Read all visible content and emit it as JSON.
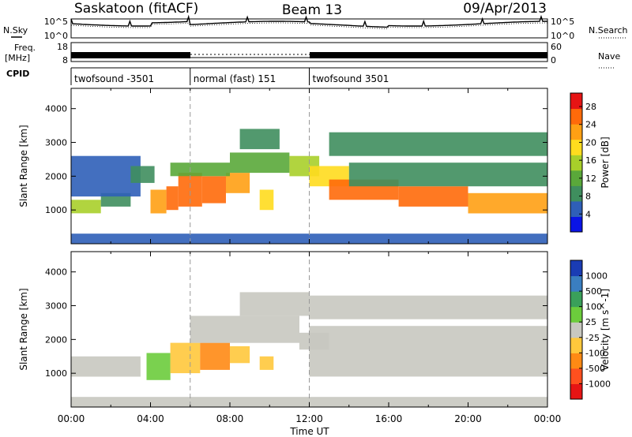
{
  "header": {
    "station": "Saskatoon (fitACF)",
    "beam": "Beam 13",
    "date": "09/Apr/2013"
  },
  "strip_labels": {
    "n_sky": "N.Sky",
    "n_search": "N.Search",
    "freq_line1": "Freq.",
    "freq_line2": "[MHz]",
    "nave": "Nave",
    "cpid": "CPID",
    "noise_tick_hi": "10^5",
    "noise_tick_lo": "10^0",
    "freq_tick_hi": "18",
    "freq_tick_lo": "8",
    "nave_tick_hi": "60",
    "nave_tick_lo": "0"
  },
  "cpid_segments": [
    {
      "label": "twofsound -3501",
      "start": "00:00",
      "end": "06:00"
    },
    {
      "label": "normal (fast) 151",
      "start": "06:00",
      "end": "12:00"
    },
    {
      "label": "twofsound 3501",
      "start": "12:00",
      "end": "24:00"
    }
  ],
  "x_axis": {
    "title": "Time UT",
    "ticks": [
      "00:00",
      "04:00",
      "08:00",
      "12:00",
      "16:00",
      "20:00",
      "00:00"
    ],
    "range_hours": [
      0,
      24
    ]
  },
  "colors": {
    "power": [
      "#0a14e6",
      "#2f5fb8",
      "#3f8e5e",
      "#5aa83a",
      "#a8cf2a",
      "#ffdc1e",
      "#ffa014",
      "#ff6a0a",
      "#e61414"
    ],
    "velocity": [
      "#1a3cb4",
      "#3a7ec0",
      "#3aa05a",
      "#6ccc3c",
      "#c8c8c0",
      "#ffc83c",
      "#ff8a14",
      "#ff501e",
      "#e61414"
    ]
  },
  "chart_data": [
    {
      "type": "heatmap",
      "panel": "power",
      "ylabel": "Slant Range [km]",
      "ylim": [
        0,
        4600
      ],
      "y_ticks": [
        1000,
        2000,
        3000,
        4000
      ],
      "xlim": [
        0,
        24
      ],
      "colorbar": {
        "title": "Power [dB]",
        "ticks": [
          "4",
          "8",
          "12",
          "16",
          "20",
          "24",
          "28"
        ],
        "range": [
          0,
          31
        ]
      },
      "cells": [
        {
          "hours": [
            0.0,
            1.5
          ],
          "km": [
            900,
            1300
          ],
          "db": 17
        },
        {
          "hours": [
            1.5,
            3.0
          ],
          "km": [
            1100,
            1500
          ],
          "db": 9
        },
        {
          "hours": [
            0.0,
            3.5
          ],
          "km": [
            1400,
            2600
          ],
          "db": 6
        },
        {
          "hours": [
            3.0,
            4.2
          ],
          "km": [
            1800,
            2300
          ],
          "db": 8
        },
        {
          "hours": [
            4.0,
            4.8
          ],
          "km": [
            900,
            1600
          ],
          "db": 22
        },
        {
          "hours": [
            4.8,
            5.4
          ],
          "km": [
            1000,
            1700
          ],
          "db": 26
        },
        {
          "hours": [
            5.4,
            6.6
          ],
          "km": [
            1100,
            2100
          ],
          "db": 27
        },
        {
          "hours": [
            6.6,
            7.8
          ],
          "km": [
            1200,
            2000
          ],
          "db": 25
        },
        {
          "hours": [
            7.8,
            9.0
          ],
          "km": [
            1500,
            2100
          ],
          "db": 21
        },
        {
          "hours": [
            5.0,
            8.0
          ],
          "km": [
            2000,
            2400
          ],
          "db": 13
        },
        {
          "hours": [
            8.0,
            11.0
          ],
          "km": [
            2100,
            2700
          ],
          "db": 11
        },
        {
          "hours": [
            8.5,
            10.5
          ],
          "km": [
            2800,
            3400
          ],
          "db": 7
        },
        {
          "hours": [
            9.5,
            10.2
          ],
          "km": [
            1000,
            1600
          ],
          "db": 18
        },
        {
          "hours": [
            11.0,
            12.5
          ],
          "km": [
            2000,
            2600
          ],
          "db": 15
        },
        {
          "hours": [
            12.0,
            14.0
          ],
          "km": [
            1700,
            2300
          ],
          "db": 20
        },
        {
          "hours": [
            13.0,
            16.5
          ],
          "km": [
            1300,
            1900
          ],
          "db": 26
        },
        {
          "hours": [
            16.5,
            20.0
          ],
          "km": [
            1100,
            1700
          ],
          "db": 25
        },
        {
          "hours": [
            20.0,
            24.0
          ],
          "km": [
            900,
            1500
          ],
          "db": 23
        },
        {
          "hours": [
            14.0,
            24.0
          ],
          "km": [
            1700,
            2400
          ],
          "db": 9
        },
        {
          "hours": [
            13.0,
            24.0
          ],
          "km": [
            2600,
            3300
          ],
          "db": 7
        },
        {
          "hours": [
            0.0,
            24.0
          ],
          "km": [
            0,
            300
          ],
          "db": 5
        }
      ]
    },
    {
      "type": "heatmap",
      "panel": "velocity",
      "ylabel": "Slant Range [km]",
      "ylim": [
        0,
        4600
      ],
      "y_ticks": [
        1000,
        2000,
        3000,
        4000
      ],
      "xlim": [
        0,
        24
      ],
      "colorbar": {
        "title": "Velocity [m s^-1]",
        "ticks": [
          "1000",
          "500",
          "100",
          "25",
          "-25",
          "-100",
          "-500",
          "-1000"
        ],
        "range": [
          -1200,
          1200
        ]
      },
      "cells": [
        {
          "hours": [
            0.0,
            3.5
          ],
          "km": [
            900,
            1500
          ],
          "ms": 0
        },
        {
          "hours": [
            3.8,
            5.0
          ],
          "km": [
            800,
            1600
          ],
          "ms": 150
        },
        {
          "hours": [
            5.0,
            6.5
          ],
          "km": [
            1000,
            1900
          ],
          "ms": -300
        },
        {
          "hours": [
            6.5,
            8.0
          ],
          "km": [
            1100,
            1900
          ],
          "ms": -400
        },
        {
          "hours": [
            8.0,
            9.0
          ],
          "km": [
            1300,
            1800
          ],
          "ms": -200
        },
        {
          "hours": [
            9.5,
            10.2
          ],
          "km": [
            1100,
            1500
          ],
          "ms": -300
        },
        {
          "hours": [
            6.0,
            11.5
          ],
          "km": [
            1900,
            2700
          ],
          "ms": 0
        },
        {
          "hours": [
            8.5,
            12.0
          ],
          "km": [
            2700,
            3400
          ],
          "ms": 0
        },
        {
          "hours": [
            11.5,
            13.0
          ],
          "km": [
            1700,
            2200
          ],
          "ms": 80
        },
        {
          "hours": [
            12.0,
            24.0
          ],
          "km": [
            900,
            2400
          ],
          "ms": 0
        },
        {
          "hours": [
            12.0,
            24.0
          ],
          "km": [
            2600,
            3300
          ],
          "ms": 0
        },
        {
          "hours": [
            0.0,
            24.0
          ],
          "km": [
            0,
            300
          ],
          "ms": 0
        }
      ]
    }
  ]
}
